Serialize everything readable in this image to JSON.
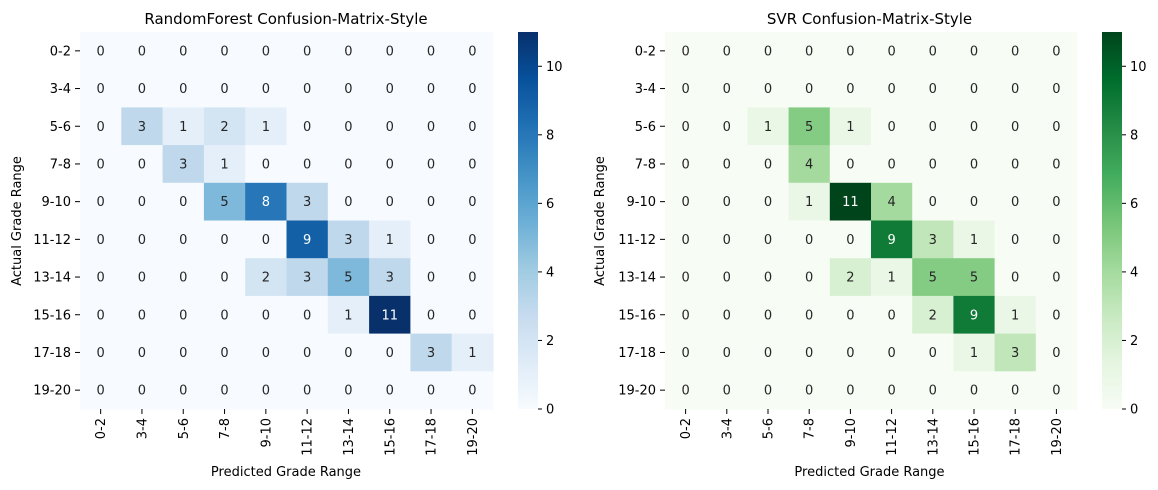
{
  "chart_data": [
    {
      "type": "heatmap",
      "title": "RandomForest Confusion-Matrix-Style",
      "xlabel": "Predicted Grade Range",
      "ylabel": "Actual Grade Range",
      "x_categories": [
        "0-2",
        "3-4",
        "5-6",
        "7-8",
        "9-10",
        "11-12",
        "13-14",
        "15-16",
        "17-18",
        "19-20"
      ],
      "y_categories": [
        "0-2",
        "3-4",
        "5-6",
        "7-8",
        "9-10",
        "11-12",
        "13-14",
        "15-16",
        "17-18",
        "19-20"
      ],
      "values": [
        [
          0,
          0,
          0,
          0,
          0,
          0,
          0,
          0,
          0,
          0
        ],
        [
          0,
          0,
          0,
          0,
          0,
          0,
          0,
          0,
          0,
          0
        ],
        [
          0,
          3,
          1,
          2,
          1,
          0,
          0,
          0,
          0,
          0
        ],
        [
          0,
          0,
          3,
          1,
          0,
          0,
          0,
          0,
          0,
          0
        ],
        [
          0,
          0,
          0,
          5,
          8,
          3,
          0,
          0,
          0,
          0
        ],
        [
          0,
          0,
          0,
          0,
          0,
          9,
          3,
          1,
          0,
          0
        ],
        [
          0,
          0,
          0,
          0,
          2,
          3,
          5,
          3,
          0,
          0
        ],
        [
          0,
          0,
          0,
          0,
          0,
          0,
          1,
          11,
          0,
          0
        ],
        [
          0,
          0,
          0,
          0,
          0,
          0,
          0,
          0,
          3,
          1
        ],
        [
          0,
          0,
          0,
          0,
          0,
          0,
          0,
          0,
          0,
          0
        ]
      ],
      "colormap": "Blues",
      "colormap_low": "#f7fbff",
      "colormap_high": "#08306b",
      "vmin": 0,
      "vmax": 11,
      "colorbar_ticks": [
        0,
        2,
        4,
        6,
        8,
        10
      ]
    },
    {
      "type": "heatmap",
      "title": "SVR Confusion-Matrix-Style",
      "xlabel": "Predicted Grade Range",
      "ylabel": "Actual Grade Range",
      "x_categories": [
        "0-2",
        "3-4",
        "5-6",
        "7-8",
        "9-10",
        "11-12",
        "13-14",
        "15-16",
        "17-18",
        "19-20"
      ],
      "y_categories": [
        "0-2",
        "3-4",
        "5-6",
        "7-8",
        "9-10",
        "11-12",
        "13-14",
        "15-16",
        "17-18",
        "19-20"
      ],
      "values": [
        [
          0,
          0,
          0,
          0,
          0,
          0,
          0,
          0,
          0,
          0
        ],
        [
          0,
          0,
          0,
          0,
          0,
          0,
          0,
          0,
          0,
          0
        ],
        [
          0,
          0,
          1,
          5,
          1,
          0,
          0,
          0,
          0,
          0
        ],
        [
          0,
          0,
          0,
          4,
          0,
          0,
          0,
          0,
          0,
          0
        ],
        [
          0,
          0,
          0,
          1,
          11,
          4,
          0,
          0,
          0,
          0
        ],
        [
          0,
          0,
          0,
          0,
          0,
          9,
          3,
          1,
          0,
          0
        ],
        [
          0,
          0,
          0,
          0,
          2,
          1,
          5,
          5,
          0,
          0
        ],
        [
          0,
          0,
          0,
          0,
          0,
          0,
          2,
          9,
          1,
          0
        ],
        [
          0,
          0,
          0,
          0,
          0,
          0,
          0,
          1,
          3,
          0
        ],
        [
          0,
          0,
          0,
          0,
          0,
          0,
          0,
          0,
          0,
          0
        ]
      ],
      "colormap": "Greens",
      "colormap_low": "#f7fcf5",
      "colormap_high": "#00441b",
      "vmin": 0,
      "vmax": 11,
      "colorbar_ticks": [
        0,
        2,
        4,
        6,
        8,
        10
      ]
    }
  ]
}
